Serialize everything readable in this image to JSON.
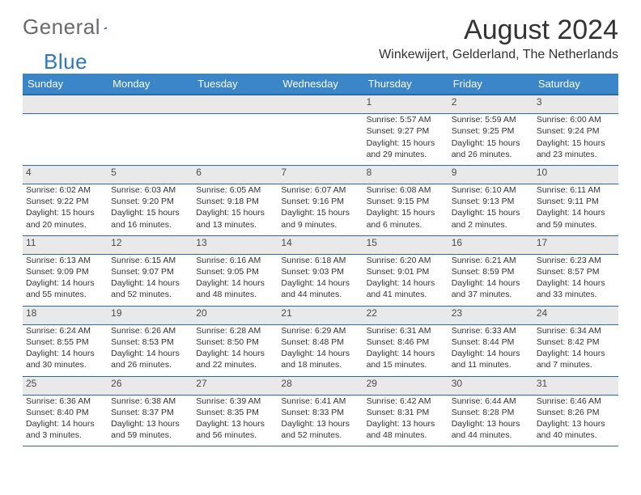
{
  "brand": {
    "part1": "General",
    "part2": "Blue",
    "triangle_color": "#2f77bb"
  },
  "title": "August 2024",
  "location": "Winkewijert, Gelderland, The Netherlands",
  "header_bg": "#3a86c8",
  "header_border": "#2e6aa0",
  "daynum_bg": "#e9e9e9",
  "weekdays": [
    "Sunday",
    "Monday",
    "Tuesday",
    "Wednesday",
    "Thursday",
    "Friday",
    "Saturday"
  ],
  "cells": [
    [
      {
        "day": "",
        "lines": [
          "",
          "",
          ""
        ]
      },
      {
        "day": "",
        "lines": [
          "",
          "",
          ""
        ]
      },
      {
        "day": "",
        "lines": [
          "",
          "",
          ""
        ]
      },
      {
        "day": "",
        "lines": [
          "",
          "",
          ""
        ]
      },
      {
        "day": "1",
        "lines": [
          "Sunrise: 5:57 AM",
          "Sunset: 9:27 PM",
          "Daylight: 15 hours and 29 minutes."
        ]
      },
      {
        "day": "2",
        "lines": [
          "Sunrise: 5:59 AM",
          "Sunset: 9:25 PM",
          "Daylight: 15 hours and 26 minutes."
        ]
      },
      {
        "day": "3",
        "lines": [
          "Sunrise: 6:00 AM",
          "Sunset: 9:24 PM",
          "Daylight: 15 hours and 23 minutes."
        ]
      }
    ],
    [
      {
        "day": "4",
        "lines": [
          "Sunrise: 6:02 AM",
          "Sunset: 9:22 PM",
          "Daylight: 15 hours and 20 minutes."
        ]
      },
      {
        "day": "5",
        "lines": [
          "Sunrise: 6:03 AM",
          "Sunset: 9:20 PM",
          "Daylight: 15 hours and 16 minutes."
        ]
      },
      {
        "day": "6",
        "lines": [
          "Sunrise: 6:05 AM",
          "Sunset: 9:18 PM",
          "Daylight: 15 hours and 13 minutes."
        ]
      },
      {
        "day": "7",
        "lines": [
          "Sunrise: 6:07 AM",
          "Sunset: 9:16 PM",
          "Daylight: 15 hours and 9 minutes."
        ]
      },
      {
        "day": "8",
        "lines": [
          "Sunrise: 6:08 AM",
          "Sunset: 9:15 PM",
          "Daylight: 15 hours and 6 minutes."
        ]
      },
      {
        "day": "9",
        "lines": [
          "Sunrise: 6:10 AM",
          "Sunset: 9:13 PM",
          "Daylight: 15 hours and 2 minutes."
        ]
      },
      {
        "day": "10",
        "lines": [
          "Sunrise: 6:11 AM",
          "Sunset: 9:11 PM",
          "Daylight: 14 hours and 59 minutes."
        ]
      }
    ],
    [
      {
        "day": "11",
        "lines": [
          "Sunrise: 6:13 AM",
          "Sunset: 9:09 PM",
          "Daylight: 14 hours and 55 minutes."
        ]
      },
      {
        "day": "12",
        "lines": [
          "Sunrise: 6:15 AM",
          "Sunset: 9:07 PM",
          "Daylight: 14 hours and 52 minutes."
        ]
      },
      {
        "day": "13",
        "lines": [
          "Sunrise: 6:16 AM",
          "Sunset: 9:05 PM",
          "Daylight: 14 hours and 48 minutes."
        ]
      },
      {
        "day": "14",
        "lines": [
          "Sunrise: 6:18 AM",
          "Sunset: 9:03 PM",
          "Daylight: 14 hours and 44 minutes."
        ]
      },
      {
        "day": "15",
        "lines": [
          "Sunrise: 6:20 AM",
          "Sunset: 9:01 PM",
          "Daylight: 14 hours and 41 minutes."
        ]
      },
      {
        "day": "16",
        "lines": [
          "Sunrise: 6:21 AM",
          "Sunset: 8:59 PM",
          "Daylight: 14 hours and 37 minutes."
        ]
      },
      {
        "day": "17",
        "lines": [
          "Sunrise: 6:23 AM",
          "Sunset: 8:57 PM",
          "Daylight: 14 hours and 33 minutes."
        ]
      }
    ],
    [
      {
        "day": "18",
        "lines": [
          "Sunrise: 6:24 AM",
          "Sunset: 8:55 PM",
          "Daylight: 14 hours and 30 minutes."
        ]
      },
      {
        "day": "19",
        "lines": [
          "Sunrise: 6:26 AM",
          "Sunset: 8:53 PM",
          "Daylight: 14 hours and 26 minutes."
        ]
      },
      {
        "day": "20",
        "lines": [
          "Sunrise: 6:28 AM",
          "Sunset: 8:50 PM",
          "Daylight: 14 hours and 22 minutes."
        ]
      },
      {
        "day": "21",
        "lines": [
          "Sunrise: 6:29 AM",
          "Sunset: 8:48 PM",
          "Daylight: 14 hours and 18 minutes."
        ]
      },
      {
        "day": "22",
        "lines": [
          "Sunrise: 6:31 AM",
          "Sunset: 8:46 PM",
          "Daylight: 14 hours and 15 minutes."
        ]
      },
      {
        "day": "23",
        "lines": [
          "Sunrise: 6:33 AM",
          "Sunset: 8:44 PM",
          "Daylight: 14 hours and 11 minutes."
        ]
      },
      {
        "day": "24",
        "lines": [
          "Sunrise: 6:34 AM",
          "Sunset: 8:42 PM",
          "Daylight: 14 hours and 7 minutes."
        ]
      }
    ],
    [
      {
        "day": "25",
        "lines": [
          "Sunrise: 6:36 AM",
          "Sunset: 8:40 PM",
          "Daylight: 14 hours and 3 minutes."
        ]
      },
      {
        "day": "26",
        "lines": [
          "Sunrise: 6:38 AM",
          "Sunset: 8:37 PM",
          "Daylight: 13 hours and 59 minutes."
        ]
      },
      {
        "day": "27",
        "lines": [
          "Sunrise: 6:39 AM",
          "Sunset: 8:35 PM",
          "Daylight: 13 hours and 56 minutes."
        ]
      },
      {
        "day": "28",
        "lines": [
          "Sunrise: 6:41 AM",
          "Sunset: 8:33 PM",
          "Daylight: 13 hours and 52 minutes."
        ]
      },
      {
        "day": "29",
        "lines": [
          "Sunrise: 6:42 AM",
          "Sunset: 8:31 PM",
          "Daylight: 13 hours and 48 minutes."
        ]
      },
      {
        "day": "30",
        "lines": [
          "Sunrise: 6:44 AM",
          "Sunset: 8:28 PM",
          "Daylight: 13 hours and 44 minutes."
        ]
      },
      {
        "day": "31",
        "lines": [
          "Sunrise: 6:46 AM",
          "Sunset: 8:26 PM",
          "Daylight: 13 hours and 40 minutes."
        ]
      }
    ]
  ]
}
